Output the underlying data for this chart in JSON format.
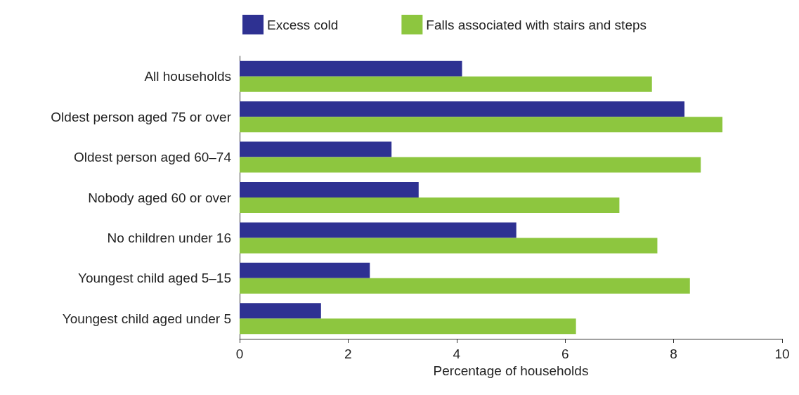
{
  "chart_data": {
    "type": "bar",
    "orientation": "horizontal",
    "xlabel": "Percentage of households",
    "categories": [
      "All households",
      "Oldest person aged 75 or over",
      "Oldest person aged 60–74",
      "Nobody aged 60 or over",
      "No children under 16",
      "Youngest child aged 5–15",
      "Youngest child aged under 5"
    ],
    "series": [
      {
        "name": "Excess cold",
        "color": "#2e3192",
        "values": [
          4.1,
          8.2,
          2.8,
          3.3,
          5.1,
          2.4,
          1.5
        ]
      },
      {
        "name": "Falls associated with stairs and steps",
        "color": "#8dc63f",
        "values": [
          7.6,
          8.9,
          8.5,
          7.0,
          7.7,
          8.3,
          6.2
        ]
      }
    ],
    "xlim": [
      0,
      10
    ],
    "xticks": [
      0,
      2,
      4,
      6,
      8,
      10
    ],
    "grid": false,
    "legend": "top"
  }
}
